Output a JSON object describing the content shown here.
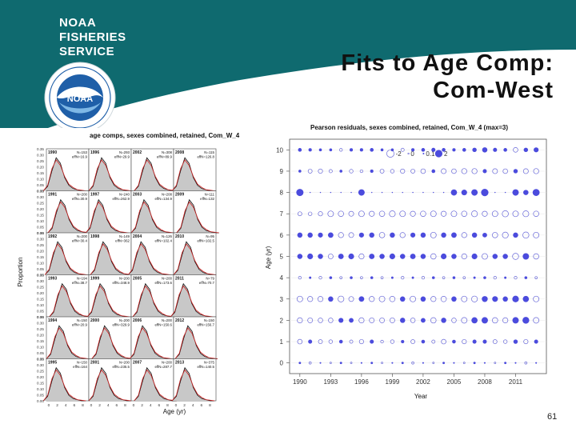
{
  "header": {
    "logo_lines": [
      "NOAA",
      "FISHERIES",
      "SERVICE"
    ],
    "logo_seal_text": "NATIONAL OCEANIC AND ATMOSPHERIC ADMINISTRATION",
    "logo_center": "NOAA",
    "colors": {
      "teal": "#0f6a6f",
      "seal_blue": "#1f5fa8"
    }
  },
  "title_lines": [
    "Fits to Age Comp:",
    "Com-West"
  ],
  "page_number": "61",
  "chart_data": [
    {
      "type": "area",
      "title": "age comps, sexes combined, retained, Com_W_4",
      "xlabel": "Age (yr)",
      "ylabel": "Proportion",
      "yticks": [
        "0.35",
        "0.30",
        "0.25",
        "0.20",
        "0.15",
        "0.10",
        "0.05",
        "0.00"
      ],
      "ylim": [
        0,
        0.35
      ],
      "xticks": [
        "0",
        "2",
        "4",
        "6",
        "8"
      ],
      "xlim": [
        0,
        10
      ],
      "panels": [
        {
          "year": "1990",
          "n": "N=153",
          "effn": "effN=16.9"
        },
        {
          "year": "1996",
          "n": "N=293",
          "effn": "effN=29.9"
        },
        {
          "year": "2002",
          "n": "N=308",
          "effN": "",
          "effn": "effN=89.9"
        },
        {
          "year": "2008",
          "n": "N=115",
          "effn": "effN=126.8"
        },
        {
          "year": "1991",
          "n": "N=200",
          "effn": "effN=30.9"
        },
        {
          "year": "1997",
          "n": "N=240",
          "effn": "effN=262.9"
        },
        {
          "year": "2003",
          "n": "N=208",
          "effn": "effN=134.9"
        },
        {
          "year": "2009",
          "n": "N=111",
          "effn": "effN=132"
        },
        {
          "year": "1992",
          "n": "N=200",
          "effn": "effN=30.4"
        },
        {
          "year": "1998",
          "n": "N=149",
          "effn": "effN=362"
        },
        {
          "year": "2004",
          "n": "N=126",
          "effn": "effN=102.4"
        },
        {
          "year": "2010",
          "n": "N=95",
          "effn": "effN=102.5"
        },
        {
          "year": "1993",
          "n": "N=194",
          "effn": "effN=38.7"
        },
        {
          "year": "1999",
          "n": "N=200",
          "effn": "effN=348.9"
        },
        {
          "year": "2005",
          "n": "N=200",
          "effn": "effN=173.6"
        },
        {
          "year": "2011",
          "n": "N=79",
          "effn": "effN=70.7"
        },
        {
          "year": "1994",
          "n": "N=150",
          "effn": "effN=20.9"
        },
        {
          "year": "2000",
          "n": "N=200",
          "effn": "effN=329.9"
        },
        {
          "year": "2006",
          "n": "N=200",
          "effn": "effN=150.6"
        },
        {
          "year": "2012",
          "n": "N=150",
          "effn": "effN=156.7"
        },
        {
          "year": "1995",
          "n": "N=150",
          "effn": "effN=164"
        },
        {
          "year": "2001",
          "n": "N=200",
          "effn": "effN=235.5"
        },
        {
          "year": "2007",
          "n": "N=200",
          "effn": "effN=287.7"
        },
        {
          "year": "2013",
          "n": "N=375",
          "effn": "effN=140.5"
        }
      ],
      "observed_profile": [
        0.0,
        0.04,
        0.18,
        0.3,
        0.25,
        0.12,
        0.05,
        0.02,
        0.01,
        0.0,
        0.0
      ],
      "expected_profile": [
        0.0,
        0.05,
        0.2,
        0.28,
        0.23,
        0.13,
        0.06,
        0.03,
        0.01,
        0.005,
        0.0
      ],
      "colors": {
        "fill": "#c8c8c8",
        "observed": "#000000",
        "expected": "#cc2222"
      }
    },
    {
      "type": "scatter",
      "title": "Pearson residuals, sexes combined, retained, Com_W_4 (max=3)",
      "xlabel": "Year",
      "ylabel": "Age (yr)",
      "xticks": [
        "1990",
        "1993",
        "1996",
        "1999",
        "2002",
        "2005",
        "2008",
        "2011"
      ],
      "xlim": [
        1989,
        2014
      ],
      "yticks": [
        "0",
        "1",
        "2",
        "3",
        "4",
        "5",
        "6",
        "7",
        "8",
        "9",
        "10"
      ],
      "ylim": [
        -0.5,
        10.5
      ],
      "legend": {
        "labels": [
          "-2",
          "0",
          "0.1",
          "2"
        ],
        "placement": "top-left"
      },
      "years": [
        1990,
        1991,
        1992,
        1993,
        1994,
        1995,
        1996,
        1997,
        1998,
        1999,
        2000,
        2001,
        2002,
        2003,
        2004,
        2005,
        2006,
        2007,
        2008,
        2009,
        2010,
        2011,
        2012,
        2013
      ],
      "residuals": [
        [
          0.2,
          -0.2,
          0.1,
          -0.1,
          0.2,
          -0.1,
          0.1,
          0.2,
          -0.1,
          0.1,
          0.2,
          -0.2,
          0.1,
          -0.1,
          0.2,
          0.1,
          -0.1,
          0.2,
          0.1,
          -0.1,
          0.2,
          0.1,
          -0.2,
          0.1
        ],
        [
          -0.8,
          0.6,
          -0.6,
          -0.5,
          0.5,
          -0.4,
          -0.7,
          0.6,
          -0.3,
          -0.5,
          0.4,
          -0.6,
          0.5,
          -0.4,
          -0.8,
          0.5,
          -0.7,
          0.6,
          0.6,
          -0.6,
          -0.5,
          0.7,
          -0.7,
          0.6
        ],
        [
          -1.0,
          -0.9,
          -0.8,
          -0.8,
          0.9,
          0.8,
          -1.0,
          -0.9,
          -0.9,
          -0.9,
          1.0,
          -0.8,
          0.8,
          -1.1,
          1.0,
          -0.8,
          -1.2,
          1.4,
          1.5,
          -1.1,
          -1.0,
          1.5,
          1.7,
          -1.2
        ],
        [
          -1.2,
          -1.0,
          -1.0,
          1.0,
          -1.3,
          -0.9,
          1.1,
          -1.0,
          -1.2,
          -1.1,
          1.0,
          -1.2,
          1.0,
          -1.0,
          -1.1,
          1.0,
          -1.2,
          -1.3,
          1.3,
          1.2,
          1.0,
          1.6,
          1.4,
          -1.2
        ],
        [
          -0.3,
          0.2,
          -0.3,
          0.3,
          -0.2,
          0.3,
          -0.2,
          0.3,
          -0.2,
          0.2,
          -0.3,
          0.2,
          -0.3,
          0.3,
          -0.2,
          0.3,
          -0.2,
          0.2,
          0.3,
          -0.3,
          0.2,
          -0.3,
          0.3,
          -0.2
        ],
        [
          1.0,
          1.2,
          1.0,
          -0.9,
          1.1,
          1.2,
          -1.0,
          1.1,
          1.0,
          1.2,
          1.0,
          1.1,
          1.0,
          -1.1,
          1.2,
          1.0,
          -1.0,
          1.2,
          -1.2,
          1.0,
          1.0,
          -1.4,
          1.5,
          -1.1
        ],
        [
          1.0,
          1.0,
          0.9,
          1.1,
          -1.0,
          -0.9,
          0.9,
          1.0,
          -1.1,
          1.0,
          -1.0,
          0.9,
          1.0,
          -1.2,
          1.0,
          1.1,
          -1.0,
          1.0,
          0.8,
          -1.1,
          -1.3,
          1.0,
          -1.4,
          -1.2
        ],
        [
          -0.6,
          -0.5,
          -0.7,
          -1.2,
          -1.1,
          -0.9,
          -1.2,
          -1.0,
          -1.1,
          -1.3,
          -1.2,
          -1.0,
          -1.1,
          -1.2,
          -1.0,
          -1.2,
          -1.1,
          -1.3,
          -1.0,
          -1.2,
          -1.4,
          -1.2,
          -1.3,
          -1.1
        ],
        [
          1.9,
          0.0,
          0.0,
          0.0,
          0.0,
          0.0,
          1.5,
          0.0,
          0.0,
          0.0,
          0.0,
          0.0,
          0.0,
          0.0,
          0.0,
          1.4,
          1.2,
          1.5,
          2.0,
          0.0,
          0.0,
          1.5,
          1.0,
          1.8
        ],
        [
          0.3,
          -0.6,
          -0.7,
          -0.4,
          0.3,
          -0.5,
          -0.3,
          0.4,
          -0.6,
          -0.5,
          -0.7,
          -0.6,
          -0.8,
          0.5,
          -0.9,
          -0.8,
          -1.0,
          -1.0,
          0.6,
          -0.9,
          -0.8,
          0.7,
          -0.9,
          -1.0
        ],
        [
          0.5,
          0.4,
          0.3,
          0.3,
          -0.3,
          0.4,
          0.4,
          0.5,
          0.3,
          0.3,
          -0.4,
          0.4,
          0.5,
          0.6,
          0.5,
          0.4,
          0.5,
          0.7,
          1.0,
          0.6,
          0.5,
          -0.8,
          0.7,
          0.9
        ]
      ],
      "colors": {
        "positive": "#4b4bdd",
        "negative_stroke": "#6a6ad8"
      }
    }
  ]
}
